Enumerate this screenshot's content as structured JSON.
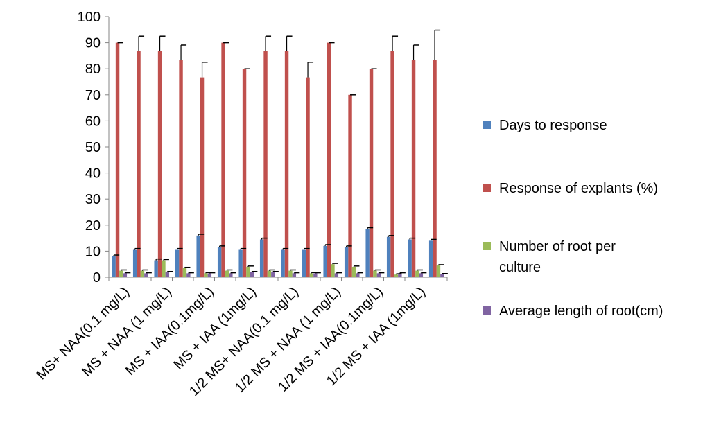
{
  "chart_data": {
    "type": "bar",
    "categories": [
      "MS+ NAA(0.1 mg/L)",
      "",
      "MS + NAA (1 mg/L)",
      "",
      "MS + IAA(0.1mg/L)",
      "",
      "MS + IAA (1mg/L)",
      "",
      "1/2 MS+ NAA(0.1 mg/L)",
      "",
      "1/2 MS + NAA (1 mg/L)",
      "",
      "1/2 MS + IAA(0.1mg/L)",
      "",
      "1/2 MS + IAA (1mg/L)",
      ""
    ],
    "series": [
      {
        "name": "Days to response",
        "color": "#4F81BD",
        "values": [
          8,
          10.5,
          6.5,
          10.5,
          16,
          11.5,
          10.5,
          14.5,
          10.5,
          10.5,
          12,
          11.5,
          18.5,
          15.5,
          14.5,
          14
        ],
        "errors": [
          0.5,
          0.5,
          0.5,
          0.5,
          0.5,
          0.5,
          0.5,
          0.5,
          0.5,
          0.5,
          0.5,
          0.5,
          0.5,
          0.5,
          0.5,
          0.5
        ]
      },
      {
        "name": "Response of explants (%)",
        "color": "#C0504D",
        "values": [
          90,
          86.7,
          86.7,
          83.3,
          76.7,
          90,
          80,
          86.7,
          86.7,
          76.7,
          90,
          70,
          80,
          86.7,
          83.3,
          83.3
        ],
        "errors": [
          0,
          5.8,
          5.8,
          5.8,
          5.8,
          0,
          0,
          5.8,
          5.8,
          5.8,
          0,
          0,
          0,
          5.8,
          5.8,
          11.5
        ]
      },
      {
        "name": "Number of  root per culture",
        "color": "#9BBB59",
        "values": [
          2.5,
          2.5,
          6.5,
          3.5,
          1.5,
          2.5,
          4,
          2.5,
          2.5,
          1.5,
          5,
          4,
          2.5,
          1,
          2.5,
          4.5
        ],
        "errors": [
          0.3,
          0.3,
          0.3,
          0.3,
          0.3,
          0.3,
          0.3,
          0.3,
          0.3,
          0.3,
          0.3,
          0.3,
          0.3,
          0.3,
          0.3,
          0.3
        ]
      },
      {
        "name": "Average length of root(cm)",
        "color": "#8064A2",
        "values": [
          1.5,
          1.5,
          2,
          1.5,
          1.5,
          1.5,
          2,
          2,
          1.5,
          1.5,
          1.5,
          1.5,
          1.5,
          1.5,
          1.5,
          1.2
        ],
        "errors": [
          0.2,
          0.2,
          0.2,
          0.2,
          0.2,
          0.2,
          0.2,
          0.2,
          0.2,
          0.2,
          0.2,
          0.2,
          0.2,
          0.2,
          0.2,
          0.2
        ]
      }
    ],
    "ylim": [
      0,
      100
    ],
    "yticks": [
      0,
      10,
      20,
      30,
      40,
      50,
      60,
      70,
      80,
      90,
      100
    ],
    "xlabel": "",
    "ylabel": "",
    "title": "",
    "grid": false,
    "legend_position": "right",
    "error_bars": "positive"
  }
}
